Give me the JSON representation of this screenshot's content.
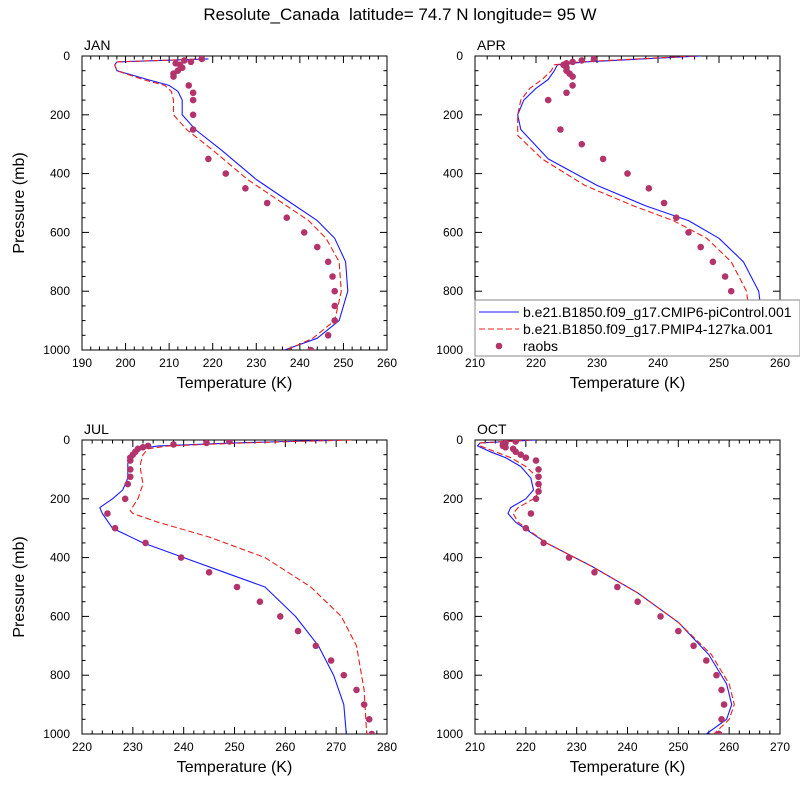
{
  "title": "Resolute_Canada  latitude= 74.7 N longitude= 95 W",
  "colors": {
    "model_control": "#1a1aff",
    "model_127ka": "#e8211b",
    "raobs": "#b3336b"
  },
  "legend": {
    "placement": "right edge of APR panel, lower part",
    "entries": [
      {
        "label": "b.e21.B1850.f09_g17.CMIP6-piControl.001",
        "style": "solid",
        "color_key": "model_control"
      },
      {
        "label": "b.e21.B1850.f09_g17.PMIP4-127ka.001",
        "style": "dashed",
        "color_key": "model_127ka"
      },
      {
        "label": "raobs",
        "style": "marker",
        "color_key": "raobs"
      }
    ]
  },
  "chart_data": [
    {
      "type": "line",
      "panel_label": "JAN",
      "xlabel": "Temperature (K)",
      "ylabel": "Pressure (mb)",
      "xlim": [
        190,
        260
      ],
      "ylim": [
        1000,
        0
      ],
      "y_inverted": true,
      "xticks": [
        190,
        200,
        210,
        220,
        230,
        240,
        250,
        260
      ],
      "yticks": [
        0,
        200,
        400,
        600,
        800,
        1000
      ],
      "series": [
        {
          "name": "b.e21.B1850.f09_g17.CMIP6-piControl.001",
          "style": "solid",
          "x": [
            219,
            198,
            197.5,
            198,
            205,
            210,
            212,
            213,
            213,
            216,
            222,
            230,
            238,
            244,
            248,
            250.5,
            251,
            249,
            244,
            236.5
          ],
          "y": [
            10,
            20,
            30,
            50,
            80,
            100,
            120,
            150,
            200,
            250,
            320,
            420,
            500,
            560,
            620,
            700,
            800,
            900,
            960,
            1000
          ]
        },
        {
          "name": "b.e21.B1850.f09_g17.PMIP4-127ka.001",
          "style": "dashed",
          "x": [
            218,
            198,
            197.5,
            198,
            204,
            209,
            210.5,
            211,
            211,
            214,
            220,
            228,
            236,
            242,
            246,
            249,
            249.5,
            248,
            243,
            237
          ],
          "y": [
            10,
            20,
            30,
            50,
            80,
            100,
            120,
            150,
            200,
            250,
            320,
            420,
            500,
            560,
            620,
            700,
            800,
            900,
            960,
            1000
          ]
        },
        {
          "name": "raobs",
          "style": "marker",
          "x": [
            217.5,
            213.5,
            215,
            211.5,
            212.5,
            213,
            212,
            211,
            211,
            214.5,
            215.5,
            215.5,
            215.5,
            215.5,
            219,
            223,
            227.5,
            232.5,
            237,
            241,
            244,
            246.5,
            247.5,
            248,
            248,
            248,
            246.5,
            242.5
          ],
          "y": [
            10,
            15,
            20,
            25,
            30,
            40,
            50,
            60,
            70,
            100,
            125,
            150,
            200,
            250,
            350,
            400,
            450,
            500,
            550,
            600,
            650,
            700,
            750,
            800,
            850,
            900,
            950,
            1000
          ]
        }
      ]
    },
    {
      "type": "line",
      "panel_label": "APR",
      "xlabel": "Temperature (K)",
      "ylabel": "",
      "xlim": [
        210,
        260
      ],
      "ylim": [
        1000,
        0
      ],
      "y_inverted": true,
      "xticks": [
        210,
        220,
        230,
        240,
        250,
        260
      ],
      "yticks": [
        0,
        200,
        400,
        600,
        800,
        1000
      ],
      "series": [
        {
          "name": "b.e21.B1850.f09_g17.CMIP6-piControl.001",
          "style": "solid",
          "x": [
            247,
            228,
            223.5,
            223,
            222,
            220,
            218,
            217,
            217.5,
            222,
            230,
            238,
            245,
            250,
            254,
            256.5,
            257,
            254,
            250
          ],
          "y": [
            0,
            20,
            30,
            50,
            80,
            110,
            150,
            200,
            250,
            350,
            440,
            510,
            560,
            620,
            700,
            800,
            880,
            950,
            1000
          ]
        },
        {
          "name": "b.e21.B1850.f09_g17.PMIP4-127ka.001",
          "style": "dashed",
          "x": [
            246,
            227,
            223,
            222.5,
            221,
            219,
            217.5,
            217,
            217,
            221,
            228,
            236,
            242.5,
            248,
            252,
            254.5,
            255,
            253,
            250
          ],
          "y": [
            0,
            20,
            30,
            50,
            80,
            110,
            150,
            200,
            270,
            350,
            440,
            510,
            560,
            620,
            700,
            800,
            880,
            950,
            1000
          ]
        },
        {
          "name": "raobs",
          "style": "marker",
          "x": [
            229.5,
            227.5,
            226,
            225,
            224.5,
            225,
            225,
            225.5,
            226,
            226,
            225,
            222,
            224,
            227.5,
            231,
            235,
            238.5,
            241,
            243,
            245,
            247,
            249,
            251,
            252,
            252.5,
            253,
            252.5,
            250.5
          ],
          "y": [
            10,
            15,
            20,
            25,
            30,
            40,
            50,
            60,
            70,
            100,
            125,
            150,
            250,
            300,
            350,
            400,
            450,
            500,
            550,
            600,
            650,
            700,
            750,
            800,
            850,
            900,
            950,
            1000
          ]
        }
      ]
    },
    {
      "type": "line",
      "panel_label": "JUL",
      "xlabel": "Temperature (K)",
      "ylabel": "Pressure (mb)",
      "xlim": [
        220,
        280
      ],
      "ylim": [
        1000,
        0
      ],
      "y_inverted": true,
      "xticks": [
        220,
        230,
        240,
        250,
        260,
        270,
        280
      ],
      "yticks": [
        0,
        200,
        400,
        600,
        800,
        1000
      ],
      "series": [
        {
          "name": "b.e21.B1850.f09_g17.CMIP6-piControl.001",
          "style": "solid",
          "x": [
            271,
            250,
            235,
            231,
            229.5,
            229,
            229,
            229,
            228,
            226,
            223.5,
            224,
            226,
            232,
            240,
            248,
            256,
            262,
            266.5,
            269.5,
            271.5,
            272
          ],
          "y": [
            0,
            10,
            20,
            30,
            50,
            80,
            100,
            130,
            170,
            200,
            230,
            250,
            300,
            350,
            400,
            450,
            500,
            600,
            700,
            800,
            900,
            1000
          ]
        },
        {
          "name": "b.e21.B1850.f09_g17.PMIP4-127ka.001",
          "style": "dashed",
          "x": [
            273,
            252,
            237,
            233,
            232,
            231.5,
            231.5,
            232,
            231,
            229.5,
            230,
            235,
            245,
            256,
            265,
            271,
            274,
            275.5,
            276
          ],
          "y": [
            0,
            10,
            20,
            30,
            50,
            80,
            100,
            150,
            200,
            240,
            250,
            280,
            330,
            400,
            500,
            600,
            700,
            850,
            1000
          ]
        },
        {
          "name": "raobs",
          "style": "marker",
          "x": [
            249,
            244.5,
            238,
            233,
            232,
            231,
            230.5,
            230,
            229.5,
            229.5,
            229.5,
            229.5,
            229,
            228.5,
            225,
            226.5,
            232.5,
            239.5,
            245,
            250.5,
            255,
            259,
            262.5,
            266,
            269,
            271.5,
            274,
            275.5,
            276.5,
            277
          ],
          "y": [
            5,
            10,
            15,
            20,
            25,
            30,
            40,
            50,
            60,
            70,
            100,
            125,
            150,
            200,
            250,
            300,
            350,
            400,
            450,
            500,
            550,
            600,
            650,
            700,
            750,
            800,
            850,
            900,
            950,
            1000
          ]
        }
      ]
    },
    {
      "type": "line",
      "panel_label": "OCT",
      "xlabel": "Temperature (K)",
      "ylabel": "",
      "xlim": [
        210,
        270
      ],
      "ylim": [
        1000,
        0
      ],
      "y_inverted": true,
      "xticks": [
        210,
        220,
        230,
        240,
        250,
        260,
        270
      ],
      "yticks": [
        0,
        200,
        400,
        600,
        800,
        1000
      ],
      "series": [
        {
          "name": "b.e21.B1850.f09_g17.CMIP6-piControl.001",
          "style": "solid",
          "x": [
            222,
            211,
            210.5,
            213,
            216,
            219,
            221,
            221.5,
            220,
            217,
            216.5,
            218,
            224,
            233,
            242,
            250,
            256,
            259.5,
            260.5,
            259.5,
            255.5
          ],
          "y": [
            0,
            10,
            20,
            40,
            60,
            90,
            130,
            170,
            200,
            230,
            250,
            280,
            350,
            430,
            520,
            620,
            730,
            830,
            900,
            950,
            1000
          ]
        },
        {
          "name": "b.e21.B1850.f09_g17.PMIP4-127ka.001",
          "style": "dashed",
          "x": [
            221,
            211,
            211,
            214,
            217,
            220,
            222.5,
            223,
            221.5,
            218.5,
            217.5,
            218.5,
            224,
            233,
            242,
            250,
            256.5,
            260,
            261,
            260,
            257
          ],
          "y": [
            0,
            10,
            20,
            40,
            60,
            90,
            130,
            170,
            200,
            230,
            250,
            280,
            350,
            430,
            520,
            620,
            730,
            830,
            900,
            950,
            1000
          ]
        },
        {
          "name": "raobs",
          "style": "marker",
          "x": [
            218,
            216,
            215.5,
            215.5,
            216,
            217.5,
            218,
            219,
            220,
            222,
            222.5,
            222.5,
            222.5,
            222.5,
            222,
            221,
            220,
            223.5,
            228.5,
            233.5,
            238,
            242,
            246.5,
            250,
            253,
            255.5,
            257.5,
            258.5,
            259,
            258.5,
            258
          ],
          "y": [
            5,
            10,
            15,
            20,
            25,
            30,
            40,
            50,
            60,
            70,
            100,
            125,
            150,
            175,
            200,
            250,
            300,
            350,
            400,
            450,
            500,
            550,
            600,
            650,
            700,
            750,
            800,
            850,
            900,
            950,
            1000
          ]
        }
      ]
    }
  ]
}
